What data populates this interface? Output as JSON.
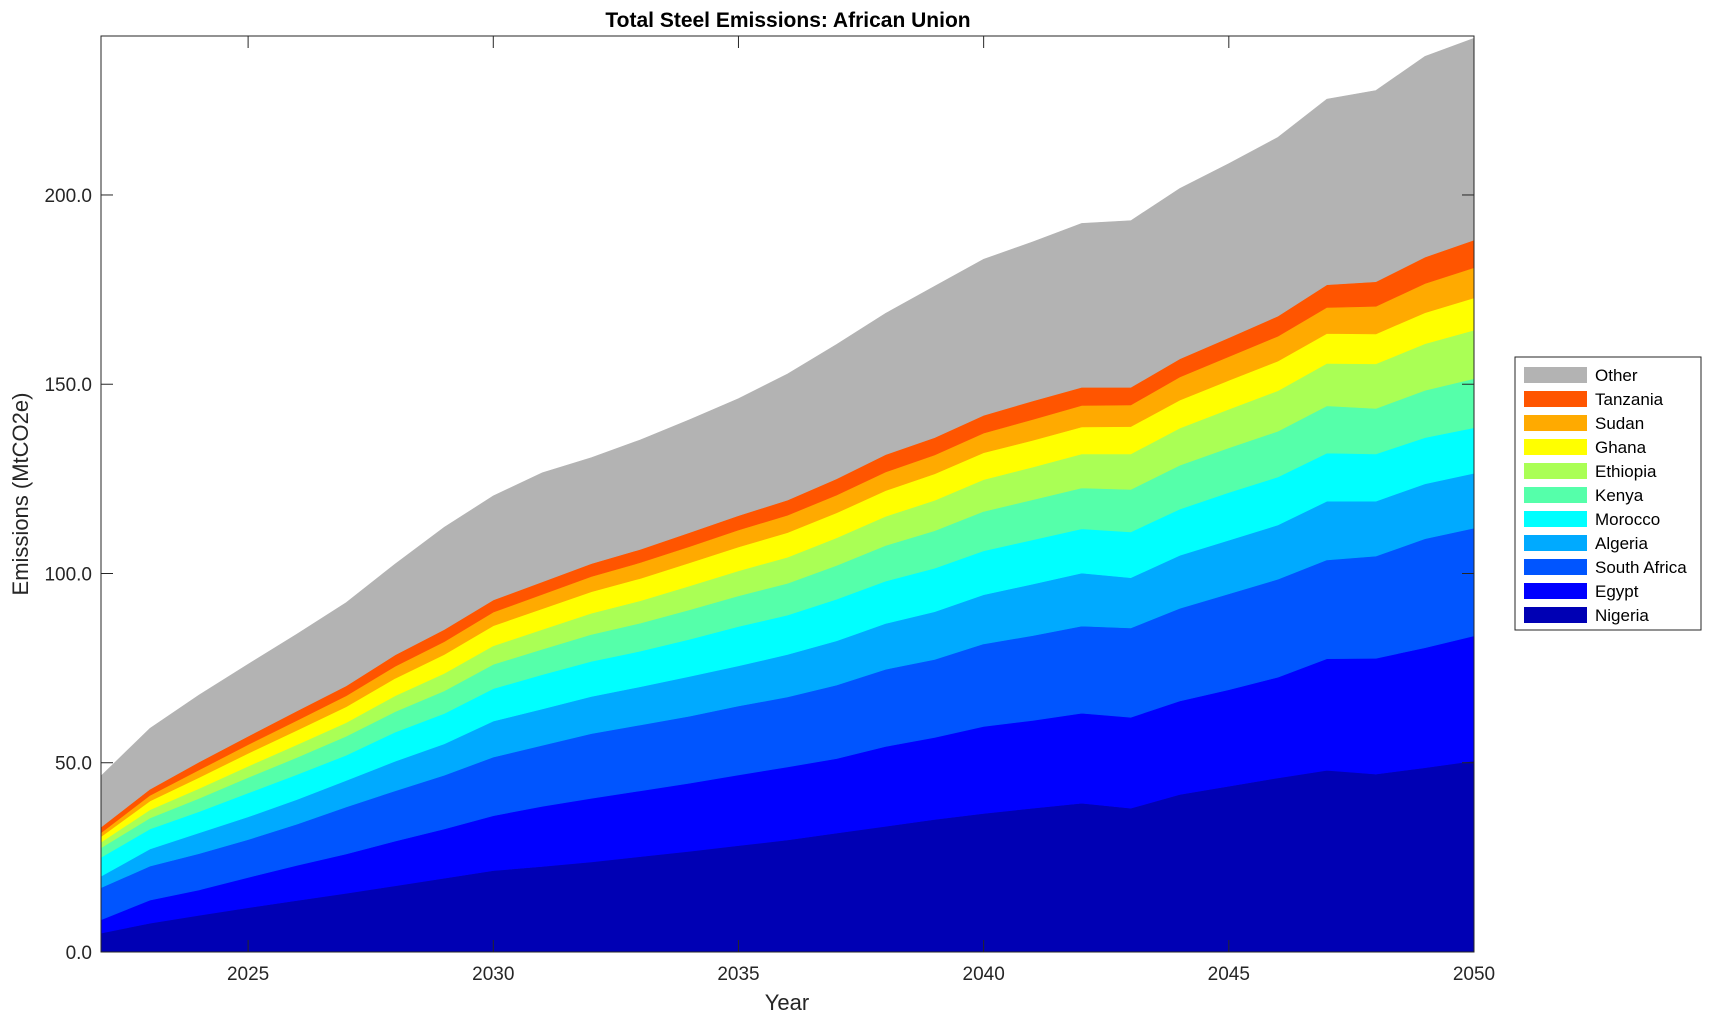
{
  "chart_data": {
    "type": "area",
    "stacked": true,
    "title": "Total Steel Emissions: African Union",
    "xlabel": "Year",
    "ylabel": "Emissions (MtCO2e)",
    "xlim": [
      2022,
      2050
    ],
    "ylim": [
      0,
      242
    ],
    "xticks": [
      "2025",
      "2030",
      "2035",
      "2040",
      "2045",
      "2050"
    ],
    "yticks": [
      "0.0",
      "50.0",
      "100.0",
      "150.0",
      "200.0"
    ],
    "grid": false,
    "legend_position": "right",
    "x": [
      2022,
      2023,
      2024,
      2025,
      2026,
      2027,
      2028,
      2029,
      2030,
      2031,
      2032,
      2033,
      2034,
      2035,
      2036,
      2037,
      2038,
      2039,
      2040,
      2041,
      2042,
      2043,
      2044,
      2045,
      2046,
      2047,
      2048,
      2049,
      2050
    ],
    "series": [
      {
        "name": "Nigeria",
        "color": "#0000B4",
        "values": [
          5.0,
          7.6,
          9.7,
          11.7,
          13.6,
          15.5,
          17.5,
          19.5,
          21.5,
          22.6,
          23.8,
          25.2,
          26.6,
          28.1,
          29.6,
          31.4,
          33.2,
          35.0,
          36.6,
          38.0,
          39.3,
          38.0,
          41.6,
          43.8,
          46.0,
          48.0,
          47.0,
          48.7,
          50.5
        ]
      },
      {
        "name": "Egypt",
        "color": "#0000FF",
        "values": [
          3.5,
          6.1,
          6.7,
          8.0,
          9.3,
          10.4,
          11.8,
          13.0,
          14.5,
          15.9,
          16.8,
          17.4,
          18.0,
          18.7,
          19.3,
          19.7,
          21.1,
          21.7,
          23.0,
          23.2,
          23.8,
          24.0,
          24.7,
          25.5,
          26.6,
          29.5,
          30.6,
          31.7,
          33.0
        ]
      },
      {
        "name": "South Africa",
        "color": "#0055FF",
        "values": [
          8.5,
          9.0,
          9.6,
          10.0,
          10.9,
          12.4,
          13.3,
          14.2,
          15.5,
          16.1,
          17.1,
          17.4,
          17.7,
          18.2,
          18.5,
          19.4,
          20.4,
          20.6,
          21.8,
          22.4,
          23.0,
          23.6,
          24.5,
          25.3,
          25.9,
          26.1,
          27.0,
          28.8,
          28.5
        ]
      },
      {
        "name": "Algeria",
        "color": "#00AAFF",
        "values": [
          3.0,
          4.5,
          5.5,
          6.0,
          6.5,
          7.0,
          7.8,
          8.3,
          9.5,
          9.6,
          9.8,
          10.1,
          10.5,
          10.6,
          11.2,
          11.7,
          12.1,
          12.6,
          13.0,
          13.6,
          14.0,
          13.3,
          14.0,
          14.2,
          14.3,
          15.5,
          14.5,
          14.5,
          14.5
        ]
      },
      {
        "name": "Morocco",
        "color": "#00FFFF",
        "values": [
          5.0,
          5.3,
          5.6,
          6.3,
          6.6,
          6.7,
          7.7,
          8.0,
          8.6,
          9.1,
          9.3,
          9.4,
          9.8,
          10.4,
          10.4,
          11.0,
          11.2,
          11.5,
          11.6,
          11.7,
          11.7,
          12.1,
          12.2,
          12.6,
          12.7,
          12.7,
          12.5,
          12.2,
          12.0
        ]
      },
      {
        "name": "Kenya",
        "color": "#55FFAA",
        "values": [
          2.5,
          2.9,
          3.5,
          4.1,
          4.5,
          5.0,
          5.4,
          6.0,
          6.4,
          6.7,
          7.1,
          7.4,
          7.8,
          8.1,
          8.4,
          8.9,
          9.4,
          9.9,
          10.4,
          10.6,
          10.8,
          11.2,
          11.6,
          11.8,
          12.1,
          12.5,
          12.0,
          12.5,
          13.0
        ]
      },
      {
        "name": "Ethiopia",
        "color": "#AAFF55",
        "values": [
          1.5,
          2.2,
          2.6,
          3.0,
          3.4,
          3.6,
          4.2,
          4.6,
          4.9,
          5.2,
          5.6,
          5.9,
          6.3,
          6.6,
          6.9,
          7.3,
          7.7,
          8.0,
          8.4,
          8.6,
          9.0,
          9.4,
          9.8,
          10.2,
          10.7,
          11.2,
          11.8,
          12.3,
          12.8
        ]
      },
      {
        "name": "Ghana",
        "color": "#FFFF00",
        "values": [
          1.5,
          2.3,
          2.9,
          3.4,
          3.8,
          4.2,
          4.6,
          5.0,
          5.3,
          5.5,
          5.7,
          5.9,
          6.1,
          6.3,
          6.5,
          6.6,
          6.8,
          7.0,
          7.1,
          7.1,
          7.1,
          7.2,
          7.4,
          7.6,
          7.8,
          7.9,
          7.9,
          8.2,
          8.5
        ]
      },
      {
        "name": "Sudan",
        "color": "#FFAA00",
        "values": [
          1.0,
          1.5,
          2.0,
          2.3,
          2.6,
          2.9,
          3.2,
          3.4,
          3.6,
          3.8,
          4.0,
          4.2,
          4.3,
          4.5,
          4.6,
          4.7,
          4.9,
          5.0,
          5.2,
          5.5,
          5.7,
          5.7,
          6.1,
          6.3,
          6.6,
          6.9,
          7.3,
          7.7,
          8.0
        ]
      },
      {
        "name": "Tanzania",
        "color": "#FF5500",
        "values": [
          1.5,
          1.6,
          2.1,
          2.2,
          2.5,
          2.6,
          3.0,
          3.2,
          3.2,
          3.3,
          3.4,
          3.5,
          3.7,
          3.8,
          4.0,
          4.3,
          4.6,
          4.6,
          4.7,
          4.9,
          4.8,
          4.7,
          4.8,
          5.0,
          5.3,
          6.0,
          6.5,
          7.0,
          7.3
        ]
      },
      {
        "name": "Other",
        "color": "#B3B3B3",
        "values": [
          13.5,
          16.1,
          17.7,
          19.0,
          20.3,
          22.0,
          24.0,
          27.0,
          27.5,
          28.8,
          28.0,
          28.9,
          29.8,
          30.9,
          33.3,
          35.5,
          37.3,
          40.0,
          41.2,
          42.0,
          43.3,
          44.0,
          45.0,
          46.0,
          47.2,
          49.0,
          50.5,
          53.0,
          53.3
        ]
      }
    ]
  }
}
